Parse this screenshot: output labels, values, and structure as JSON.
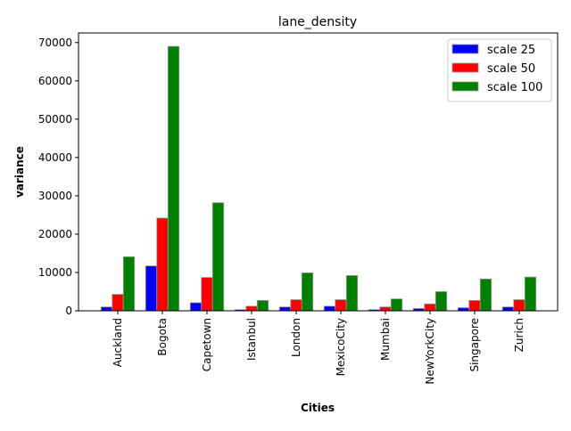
{
  "chart_data": {
    "type": "bar",
    "title": "lane_density",
    "xlabel": "Cities",
    "ylabel": "variance",
    "categories": [
      "Auckland",
      "Bogota",
      "Capetown",
      "Istanbul",
      "London",
      "MexicoCity",
      "Mumbai",
      "NewYorkCity",
      "Singapore",
      "Zurich"
    ],
    "ylim": [
      0,
      72500
    ],
    "yticks": [
      0,
      10000,
      20000,
      30000,
      40000,
      50000,
      60000,
      70000
    ],
    "legend_position": "top-right",
    "grid": false,
    "series": [
      {
        "name": "scale 25",
        "color": "#0000ff",
        "values": [
          1000,
          11700,
          2100,
          300,
          1000,
          1200,
          300,
          600,
          800,
          1000
        ]
      },
      {
        "name": "scale 50",
        "color": "#ff0000",
        "values": [
          4300,
          24200,
          8700,
          1200,
          2900,
          2900,
          1000,
          1800,
          2700,
          2900
        ]
      },
      {
        "name": "scale 100",
        "color": "#008000",
        "values": [
          14100,
          69000,
          28200,
          2700,
          9900,
          9200,
          3100,
          5000,
          8300,
          8800
        ]
      }
    ]
  }
}
